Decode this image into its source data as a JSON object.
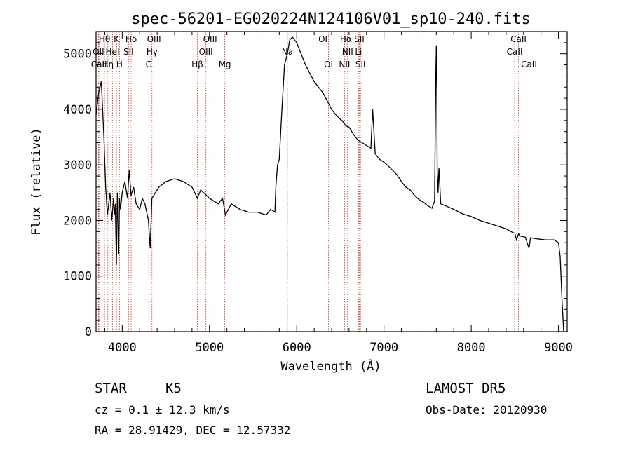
{
  "chart_data": {
    "type": "line",
    "title": "spec-56201-EG020224N124106V01_sp10-240.fits",
    "xlabel": "Wavelength (Å)",
    "ylabel": "Flux (relative)",
    "xlim": [
      3700,
      9100
    ],
    "ylim": [
      0,
      5400
    ],
    "xticks": [
      4000,
      5000,
      6000,
      7000,
      8000,
      9000
    ],
    "yticks": [
      0,
      1000,
      2000,
      3000,
      4000,
      5000
    ],
    "series": [
      {
        "x": [
          3700,
          3730,
          3760,
          3790,
          3810,
          3830,
          3860,
          3880,
          3900,
          3910,
          3920,
          3933,
          3945,
          3960,
          3968,
          3980,
          4000,
          4030,
          4060,
          4080,
          4101,
          4130,
          4160,
          4200,
          4230,
          4260,
          4300,
          4320,
          4340,
          4380,
          4420,
          4500,
          4600,
          4700,
          4800,
          4861,
          4900,
          5000,
          5100,
          5150,
          5183,
          5250,
          5350,
          5450,
          5550,
          5650,
          5700,
          5750,
          5760,
          5780,
          5800,
          5830,
          5860,
          5893,
          5920,
          5950,
          6000,
          6050,
          6100,
          6150,
          6200,
          6250,
          6300,
          6350,
          6400,
          6450,
          6500,
          6520,
          6563,
          6600,
          6650,
          6700,
          6750,
          6800,
          6850,
          6870,
          6900,
          6950,
          7000,
          7050,
          7100,
          7150,
          7200,
          7250,
          7300,
          7350,
          7400,
          7450,
          7500,
          7550,
          7580,
          7595,
          7600,
          7605,
          7610,
          7620,
          7630,
          7650,
          7700,
          7800,
          7900,
          8000,
          8100,
          8200,
          8300,
          8400,
          8480,
          8500,
          8520,
          8542,
          8560,
          8620,
          8662,
          8680,
          8750,
          8850,
          8950,
          9000,
          9020,
          9040,
          9060
        ],
        "y": [
          3900,
          4300,
          4500,
          3500,
          2600,
          2100,
          2500,
          2000,
          2400,
          2100,
          2300,
          1200,
          2500,
          1400,
          2400,
          2200,
          2500,
          2700,
          2400,
          2900,
          2450,
          2600,
          2300,
          2200,
          2400,
          2300,
          2000,
          1500,
          2400,
          2500,
          2600,
          2700,
          2750,
          2700,
          2600,
          2400,
          2550,
          2400,
          2300,
          2400,
          2100,
          2300,
          2200,
          2150,
          2150,
          2100,
          2200,
          2150,
          2600,
          3000,
          3100,
          4000,
          4800,
          5000,
          5250,
          5300,
          5200,
          5000,
          4800,
          4650,
          4500,
          4400,
          4300,
          4150,
          4000,
          3900,
          3820,
          3800,
          3700,
          3680,
          3550,
          3450,
          3400,
          3350,
          3300,
          4000,
          3200,
          3100,
          3050,
          2980,
          2900,
          2820,
          2700,
          2600,
          2550,
          2450,
          2380,
          2330,
          2270,
          2220,
          2350,
          4700,
          5150,
          4400,
          2900,
          2500,
          2950,
          2300,
          2270,
          2200,
          2120,
          2070,
          2000,
          1950,
          1900,
          1850,
          1780,
          1770,
          1650,
          1760,
          1720,
          1700,
          1500,
          1690,
          1670,
          1650,
          1650,
          1600,
          1350,
          600,
          0
        ]
      }
    ],
    "line_markers": [
      {
        "name": "Hθ",
        "wave": 3797,
        "row": 0
      },
      {
        "name": "OII",
        "wave": 3727,
        "row": 1
      },
      {
        "name": "CaII",
        "wave": 3733,
        "row": 2
      },
      {
        "name": "Hη",
        "wave": 3835,
        "row": 2
      },
      {
        "name": "HeI",
        "wave": 3889,
        "row": 1
      },
      {
        "name": "K",
        "wave": 3934,
        "row": 0
      },
      {
        "name": "H",
        "wave": 3968,
        "row": 2
      },
      {
        "name": "SII",
        "wave": 4072,
        "row": 1
      },
      {
        "name": "Hδ",
        "wave": 4102,
        "row": 0
      },
      {
        "name": "OIII",
        "wave": 4364,
        "row": 0
      },
      {
        "name": "Hγ",
        "wave": 4341,
        "row": 1
      },
      {
        "name": "G",
        "wave": 4305,
        "row": 2
      },
      {
        "name": "Hβ",
        "wave": 4861,
        "row": 2
      },
      {
        "name": "OIII",
        "wave": 4959,
        "row": 1
      },
      {
        "name": "OIII",
        "wave": 5007,
        "row": 0
      },
      {
        "name": "Mg",
        "wave": 5175,
        "row": 2
      },
      {
        "name": "Na",
        "wave": 5893,
        "row": 1
      },
      {
        "name": "OI",
        "wave": 6300,
        "row": 0
      },
      {
        "name": "OI",
        "wave": 6364,
        "row": 2
      },
      {
        "name": "NII",
        "wave": 6548,
        "row": 2
      },
      {
        "name": "NII",
        "wave": 6583,
        "row": 1
      },
      {
        "name": "Hα",
        "wave": 6563,
        "row": 0
      },
      {
        "name": "SII",
        "wave": 6717,
        "row": 0
      },
      {
        "name": "Li",
        "wave": 6708,
        "row": 1
      },
      {
        "name": "SII",
        "wave": 6731,
        "row": 2
      },
      {
        "name": "CaII",
        "wave": 8498,
        "row": 1
      },
      {
        "name": "CaII",
        "wave": 8542,
        "row": 0
      },
      {
        "name": "CaII",
        "wave": 8662,
        "row": 2
      }
    ]
  },
  "info": {
    "object_class": "STAR",
    "subclass": "K5",
    "survey": "LAMOST DR5",
    "cz": "cz = 0.1 ± 12.3 km/s",
    "obs_date": "Obs-Date: 20120930",
    "radec": "RA =  28.91429, DEC =  12.57332"
  },
  "colors": {
    "spectrum": "#000000",
    "line_marker": "#c0392b",
    "axes": "#000000"
  }
}
